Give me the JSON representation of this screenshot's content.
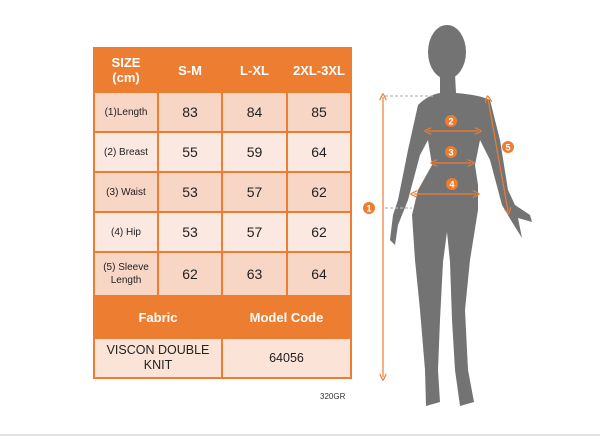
{
  "table": {
    "header": [
      "SIZE\n(cm)",
      "S-M",
      "L-XL",
      "2XL-3XL"
    ],
    "header_size": "SIZE",
    "header_unit": "(cm)",
    "rows": [
      {
        "label": "(1)Length",
        "values": [
          "83",
          "84",
          "85"
        ]
      },
      {
        "label": "(2) Breast",
        "values": [
          "55",
          "59",
          "64"
        ]
      },
      {
        "label": "(3) Waist",
        "values": [
          "53",
          "57",
          "62"
        ]
      },
      {
        "label": "(4) Hip",
        "values": [
          "53",
          "57",
          "62"
        ]
      },
      {
        "label_line1": "(5) Sleeve",
        "label_line2": "Length",
        "values": [
          "62",
          "63",
          "64"
        ]
      }
    ],
    "fabric_label": "Fabric",
    "model_code_label": "Model Code",
    "fabric_line1": "VISCON DOUBLE",
    "fabric_line2": "KNIT",
    "model_code": "64056"
  },
  "footnote": "320GR",
  "figure": {
    "markers": [
      "1",
      "2",
      "3",
      "4",
      "5"
    ],
    "accent_color": "#ED7D31",
    "silhouette_color": "#737373"
  }
}
